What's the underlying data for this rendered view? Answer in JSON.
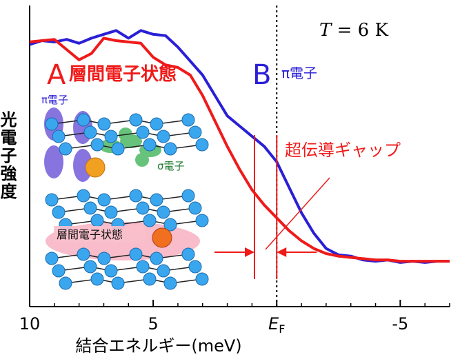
{
  "chart_data": {
    "type": "line",
    "ylabel": "光電子強度",
    "xlabel": "結合エネルギー(meV)",
    "x_reversed": true,
    "xlim": [
      10,
      -7
    ],
    "ylim": [
      0,
      1
    ],
    "x_ticks": [
      {
        "value": 10,
        "label": "10"
      },
      {
        "value": 5,
        "label": "5"
      },
      {
        "value": 0,
        "label": "E",
        "sub": "F"
      },
      {
        "value": -5,
        "label": "-5"
      }
    ],
    "fermi_line": 0,
    "temperature": {
      "prefix": "T",
      "text": " = 6 K"
    },
    "series": [
      {
        "name": "B",
        "sub": "π電子",
        "color": "#2a1fd6",
        "x": [
          10,
          9.5,
          9.0,
          8.5,
          8.0,
          7.5,
          7.0,
          6.5,
          6.0,
          5.5,
          5.0,
          4.5,
          4.0,
          3.5,
          3.0,
          2.5,
          2.0,
          1.5,
          1.0,
          0.5,
          0.0,
          -0.5,
          -1.0,
          -1.5,
          -2.0,
          -2.5,
          -3.0,
          -3.5,
          -4.0,
          -4.5,
          -5.0,
          -5.5,
          -6.0,
          -6.5,
          -7.0
        ],
        "values": [
          0.92,
          0.935,
          0.93,
          0.94,
          0.925,
          0.945,
          0.96,
          0.975,
          0.945,
          0.975,
          0.96,
          0.955,
          0.91,
          0.855,
          0.8,
          0.72,
          0.64,
          0.6,
          0.56,
          0.52,
          0.46,
          0.36,
          0.26,
          0.18,
          0.12,
          0.095,
          0.09,
          0.075,
          0.07,
          0.075,
          0.065,
          0.07,
          0.065,
          0.07,
          0.07
        ]
      },
      {
        "name": "A",
        "sub": "層間電子状態",
        "color": "#ef1a1a",
        "x": [
          10,
          9.5,
          9.0,
          8.5,
          8.0,
          7.5,
          7.0,
          6.5,
          6.0,
          5.5,
          5.0,
          4.5,
          4.0,
          3.5,
          3.0,
          2.5,
          2.0,
          1.5,
          1.0,
          0.5,
          0.0,
          -0.5,
          -1.0,
          -1.5,
          -2.0,
          -2.5,
          -3.0,
          -3.5,
          -4.0,
          -4.5,
          -5.0,
          -5.5,
          -6.0,
          -6.5,
          -7.0
        ],
        "values": [
          0.93,
          0.935,
          0.94,
          0.9,
          0.86,
          0.885,
          0.945,
          0.935,
          0.93,
          0.925,
          0.87,
          0.84,
          0.83,
          0.8,
          0.72,
          0.62,
          0.52,
          0.43,
          0.35,
          0.29,
          0.24,
          0.19,
          0.15,
          0.12,
          0.1,
          0.09,
          0.085,
          0.08,
          0.075,
          0.075,
          0.07,
          0.07,
          0.07,
          0.07,
          0.07
        ]
      }
    ],
    "gap": {
      "label": "超伝導ギャップ",
      "x_from": 0.9,
      "x_to": 0.0,
      "color": "#ef1a1a"
    },
    "inset": {
      "pi_label": "π電子",
      "sigma_label": "σ電子",
      "interlayer_label": "層間電子状態"
    }
  }
}
